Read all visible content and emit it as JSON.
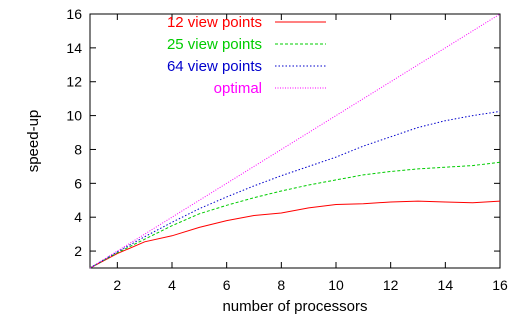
{
  "chart_data": {
    "type": "line",
    "title": "",
    "xlabel": "number of processors",
    "ylabel": "speed-up",
    "xlim": [
      1,
      16
    ],
    "ylim": [
      1,
      16
    ],
    "xticks": [
      2,
      4,
      6,
      8,
      10,
      12,
      14,
      16
    ],
    "yticks": [
      2,
      4,
      6,
      8,
      10,
      12,
      14,
      16
    ],
    "grid": false,
    "legend_position": "top-left",
    "series": [
      {
        "name": "12 view points",
        "color": "#ff0000",
        "dash": "solid",
        "x": [
          1,
          2,
          3,
          4,
          5,
          6,
          7,
          8,
          9,
          10,
          11,
          12,
          13,
          14,
          15,
          16
        ],
        "y": [
          1,
          1.85,
          2.55,
          2.9,
          3.4,
          3.8,
          4.1,
          4.25,
          4.55,
          4.75,
          4.8,
          4.9,
          4.95,
          4.9,
          4.85,
          4.95
        ]
      },
      {
        "name": "25 view points",
        "color": "#00cc00",
        "dash": "dashed",
        "x": [
          1,
          2,
          3,
          4,
          5,
          6,
          7,
          8,
          9,
          10,
          11,
          12,
          13,
          14,
          15,
          16
        ],
        "y": [
          1,
          1.9,
          2.7,
          3.5,
          4.2,
          4.7,
          5.15,
          5.55,
          5.9,
          6.2,
          6.5,
          6.7,
          6.85,
          6.95,
          7.05,
          7.25
        ]
      },
      {
        "name": "64 view points",
        "color": "#0000cc",
        "dash": "dotted",
        "x": [
          1,
          2,
          3,
          4,
          5,
          6,
          7,
          8,
          9,
          10,
          11,
          12,
          13,
          14,
          15,
          16
        ],
        "y": [
          1,
          1.95,
          2.85,
          3.7,
          4.5,
          5.2,
          5.85,
          6.45,
          7.0,
          7.55,
          8.2,
          8.75,
          9.3,
          9.7,
          10.0,
          10.25
        ]
      },
      {
        "name": "optimal",
        "color": "#ff00ff",
        "dash": "finedot",
        "x": [
          1,
          16
        ],
        "y": [
          1,
          16
        ]
      }
    ]
  }
}
